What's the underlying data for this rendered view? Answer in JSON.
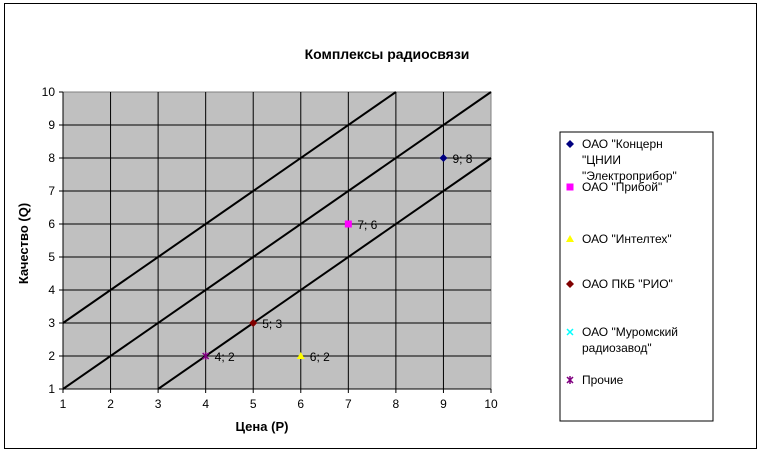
{
  "chart_data": {
    "type": "scatter",
    "title": "Комплексы радиосвязи",
    "xlabel": "Цена (Р)",
    "ylabel": "Качество (Q)",
    "xlim": [
      1,
      10
    ],
    "ylim": [
      1,
      10
    ],
    "x_ticks": [
      "1",
      "2",
      "3",
      "4",
      "5",
      "6",
      "7",
      "8",
      "9",
      "10"
    ],
    "y_ticks": [
      "1",
      "2",
      "3",
      "4",
      "5",
      "6",
      "7",
      "8",
      "9",
      "10"
    ],
    "grid": true,
    "plot_background": "#c0c0c0",
    "legend_position": "right",
    "series": [
      {
        "name": "ОАО \"Концерн \"ЦНИИ \"Электроприбор\"",
        "name_lines": [
          "ОАО \"Концерн",
          "\"ЦНИИ",
          "\"Электроприбор\""
        ],
        "color": "#000080",
        "marker": "diamond",
        "points": [
          {
            "x": 9,
            "y": 8,
            "label": "9; 8"
          }
        ]
      },
      {
        "name": "ОАО \"Прибой\"",
        "name_lines": [
          "ОАО \"Прибой\""
        ],
        "color": "#ff00ff",
        "marker": "square",
        "points": [
          {
            "x": 7,
            "y": 6,
            "label": "7; 6"
          }
        ]
      },
      {
        "name": "ОАО \"Интелтех\"",
        "name_lines": [
          "ОАО \"Интелтех\""
        ],
        "color": "#ffff00",
        "marker": "triangle",
        "points": [
          {
            "x": 6,
            "y": 2,
            "label": "6; 2"
          }
        ]
      },
      {
        "name": "ОАО ПКБ \"РИО\"",
        "name_lines": [
          "ОАО ПКБ \"РИО\""
        ],
        "color": "#800000",
        "marker": "diamond",
        "points": [
          {
            "x": 5,
            "y": 3,
            "label": "5; 3"
          }
        ]
      },
      {
        "name": "ОАО \"Муромский радиозавод\"",
        "name_lines": [
          "ОАО \"Муромский",
          "радиозавод\""
        ],
        "color": "#00ffff",
        "marker": "x",
        "points": []
      },
      {
        "name": "Прочие",
        "name_lines": [
          "Прочие"
        ],
        "color": "#800080",
        "marker": "star",
        "points": [
          {
            "x": 4,
            "y": 2,
            "label": "4; 2"
          }
        ]
      }
    ],
    "reference_lines": [
      {
        "from": [
          1,
          3
        ],
        "to": [
          8,
          10
        ]
      },
      {
        "from": [
          1,
          1
        ],
        "to": [
          10,
          10
        ]
      },
      {
        "from": [
          3,
          1
        ],
        "to": [
          10,
          8
        ]
      }
    ]
  }
}
